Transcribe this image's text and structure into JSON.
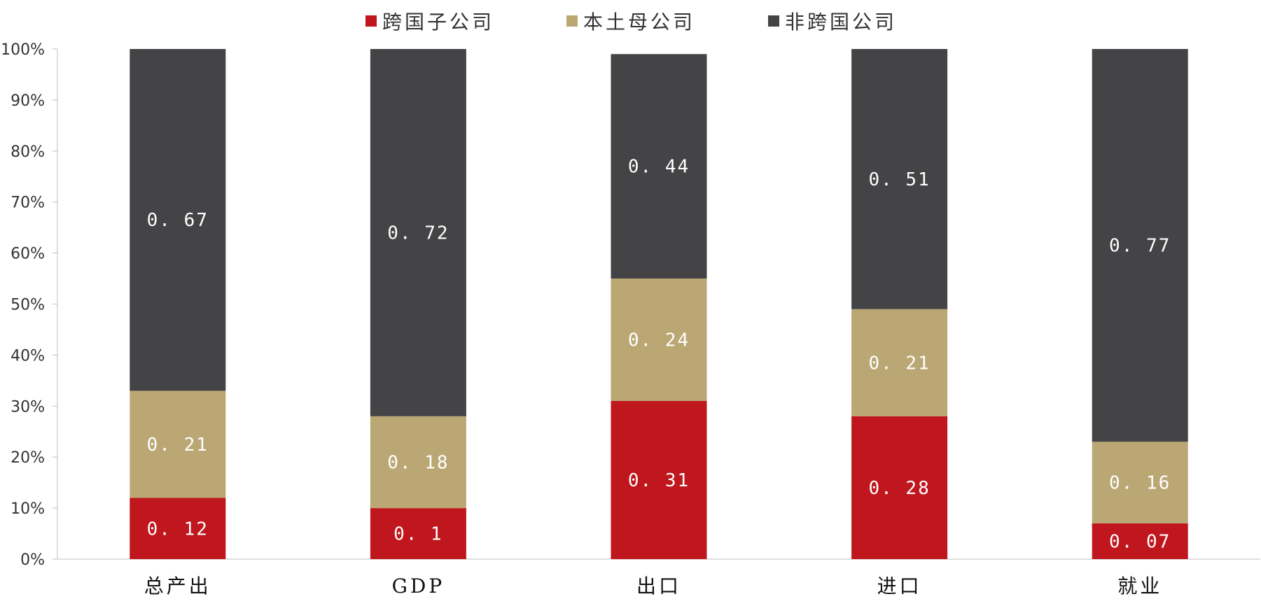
{
  "chart_data": {
    "type": "bar",
    "stacked": true,
    "categories": [
      "总产出",
      "GDP",
      "出口",
      "进口",
      "就业"
    ],
    "series": [
      {
        "name": "跨国子公司",
        "color": "#c0171e",
        "values": [
          0.12,
          0.1,
          0.31,
          0.28,
          0.07
        ]
      },
      {
        "name": "本土母公司",
        "color": "#bba774",
        "values": [
          0.21,
          0.18,
          0.24,
          0.21,
          0.16
        ]
      },
      {
        "name": "非跨国公司",
        "color": "#444446",
        "values": [
          0.67,
          0.72,
          0.44,
          0.51,
          0.77
        ]
      }
    ],
    "y_ticks": [
      "0%",
      "10%",
      "20%",
      "30%",
      "40%",
      "50%",
      "60%",
      "70%",
      "80%",
      "90%",
      "100%"
    ],
    "ylim": [
      0,
      1
    ],
    "legend_position": "top",
    "grid": false
  }
}
